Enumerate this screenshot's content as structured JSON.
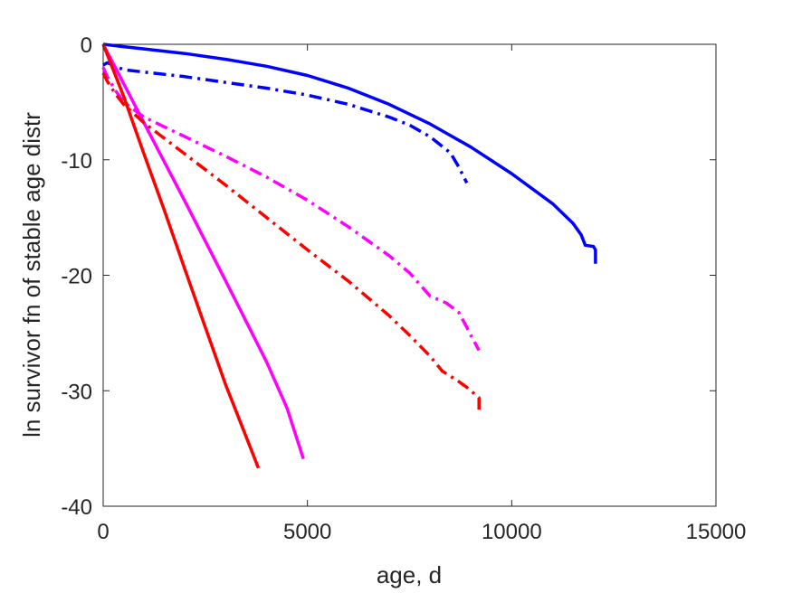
{
  "chart_data": {
    "type": "line",
    "title": "",
    "xlabel": "age, d",
    "ylabel": "ln survivor fn of stable age distr",
    "xlim": [
      0,
      15000
    ],
    "ylim": [
      -40,
      0
    ],
    "xticks": [
      0,
      5000,
      10000,
      15000
    ],
    "yticks": [
      0,
      -10,
      -20,
      -30,
      -40
    ],
    "xtick_labels": [
      "0",
      "5000",
      "10000",
      "15000"
    ],
    "ytick_labels": [
      "0",
      "-10",
      "-20",
      "-30",
      "-40"
    ],
    "grid": false,
    "legend": "none",
    "series": [
      {
        "color": "#0000ff",
        "style": "solid",
        "x": [
          0,
          500,
          1000,
          2000,
          3000,
          4000,
          5000,
          6000,
          7000,
          8000,
          9000,
          10000,
          11000,
          11500,
          11700,
          11800,
          12000,
          12050,
          12050
        ],
        "y": [
          0,
          -0.2,
          -0.4,
          -0.8,
          -1.3,
          -1.9,
          -2.7,
          -3.8,
          -5.2,
          -6.9,
          -8.9,
          -11.2,
          -13.8,
          -15.5,
          -16.5,
          -17.4,
          -17.5,
          -17.8,
          -19.0
        ]
      },
      {
        "color": "#0000ff",
        "style": "dashdot",
        "x": [
          0,
          100,
          300,
          500,
          1000,
          2000,
          3000,
          4000,
          5000,
          6000,
          7000,
          7500,
          8000,
          8500,
          8700,
          8900
        ],
        "y": [
          -1.8,
          -1.6,
          -1.9,
          -2.2,
          -2.4,
          -2.8,
          -3.3,
          -3.8,
          -4.4,
          -5.2,
          -6.3,
          -7.0,
          -8.0,
          -9.4,
          -10.6,
          -12.0
        ]
      },
      {
        "color": "#ff00ff",
        "style": "solid",
        "x": [
          0,
          500,
          1000,
          2000,
          3000,
          4000,
          4500,
          4900
        ],
        "y": [
          0,
          -3.4,
          -6.8,
          -13.6,
          -20.5,
          -27.5,
          -31.5,
          -35.9
        ]
      },
      {
        "color": "#ff00ff",
        "style": "dashdot",
        "x": [
          0,
          100,
          300,
          500,
          1000,
          2000,
          3000,
          4000,
          5000,
          6000,
          7000,
          7500,
          8000,
          8400,
          8700,
          8900,
          9000,
          9200
        ],
        "y": [
          -2.0,
          -2.8,
          -4.0,
          -5.0,
          -6.3,
          -8.0,
          -9.7,
          -11.5,
          -13.5,
          -15.8,
          -18.3,
          -19.8,
          -21.8,
          -22.4,
          -23.2,
          -24.5,
          -25.2,
          -26.5
        ]
      },
      {
        "color": "#ff0000",
        "style": "solid",
        "x": [
          0,
          500,
          1000,
          1500,
          2000,
          2500,
          3000,
          3500,
          3800
        ],
        "y": [
          0,
          -4.5,
          -9.5,
          -14.4,
          -19.5,
          -24.5,
          -29.5,
          -34.0,
          -36.7
        ]
      },
      {
        "color": "#ff0000",
        "style": "dashdot",
        "x": [
          0,
          100,
          300,
          500,
          1000,
          2000,
          3000,
          4000,
          5000,
          6000,
          7000,
          7500,
          8000,
          8300,
          8700,
          8900,
          9100,
          9200,
          9200
        ],
        "y": [
          -2.5,
          -3.2,
          -4.3,
          -5.2,
          -6.8,
          -9.5,
          -12.2,
          -15.0,
          -17.8,
          -20.5,
          -23.5,
          -25.2,
          -27.0,
          -28.3,
          -29.2,
          -29.7,
          -30.3,
          -30.6,
          -31.8
        ]
      }
    ]
  }
}
